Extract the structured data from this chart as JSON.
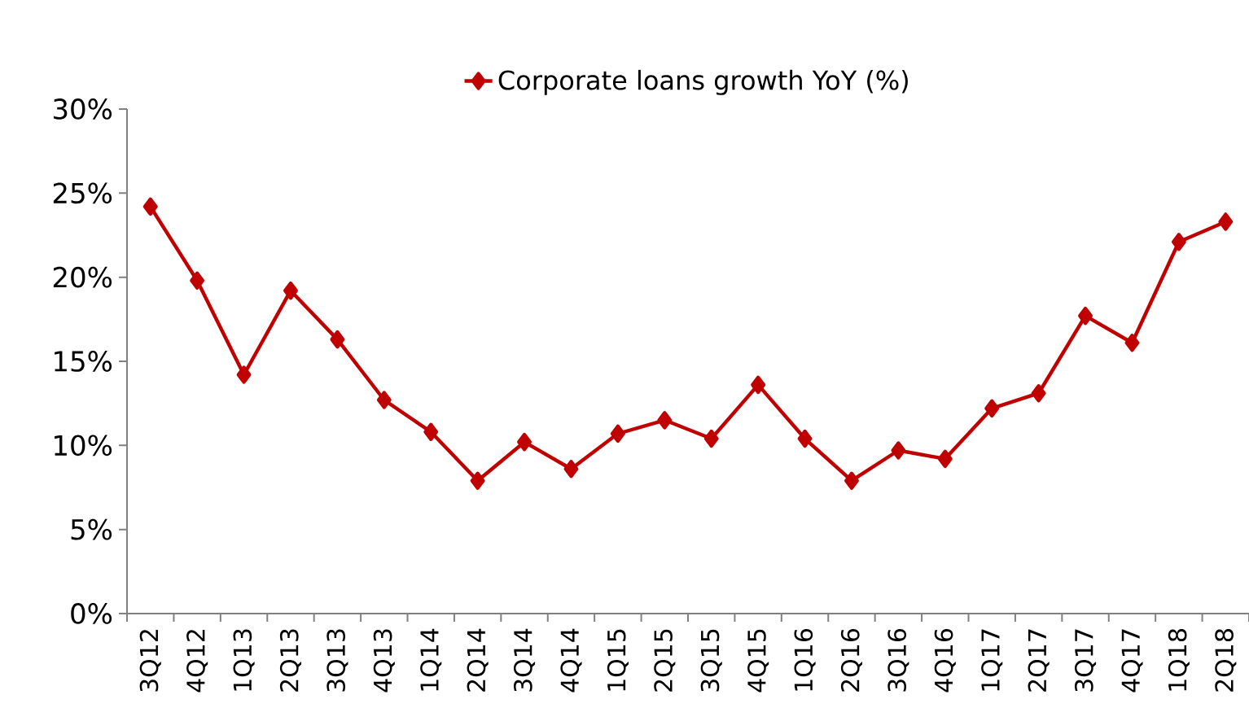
{
  "chart_data": {
    "type": "line",
    "categories": [
      "3Q12",
      "4Q12",
      "1Q13",
      "2Q13",
      "3Q13",
      "4Q13",
      "1Q14",
      "2Q14",
      "3Q14",
      "4Q14",
      "1Q15",
      "2Q15",
      "3Q15",
      "4Q15",
      "1Q16",
      "2Q16",
      "3Q16",
      "4Q16",
      "1Q17",
      "2Q17",
      "3Q17",
      "4Q17",
      "1Q18",
      "2Q18"
    ],
    "series": [
      {
        "name": "Corporate loans growth YoY (%)",
        "color": "#c00000",
        "values": [
          24.2,
          19.8,
          14.2,
          19.2,
          16.3,
          12.7,
          10.8,
          7.9,
          10.2,
          8.6,
          10.7,
          11.5,
          10.4,
          13.6,
          10.4,
          7.9,
          9.7,
          9.2,
          12.2,
          13.1,
          17.7,
          16.1,
          22.1,
          23.3
        ]
      }
    ],
    "ylim": [
      0,
      30
    ],
    "yticks": [
      {
        "value": 0,
        "label": "0%"
      },
      {
        "value": 5,
        "label": "5%"
      },
      {
        "value": 10,
        "label": "10%"
      },
      {
        "value": 15,
        "label": "15%"
      },
      {
        "value": 20,
        "label": "20%"
      },
      {
        "value": 25,
        "label": "25%"
      },
      {
        "value": 30,
        "label": "30%"
      }
    ],
    "grid": false,
    "legend": "top",
    "marker": "diamond",
    "line_style": "solid"
  }
}
